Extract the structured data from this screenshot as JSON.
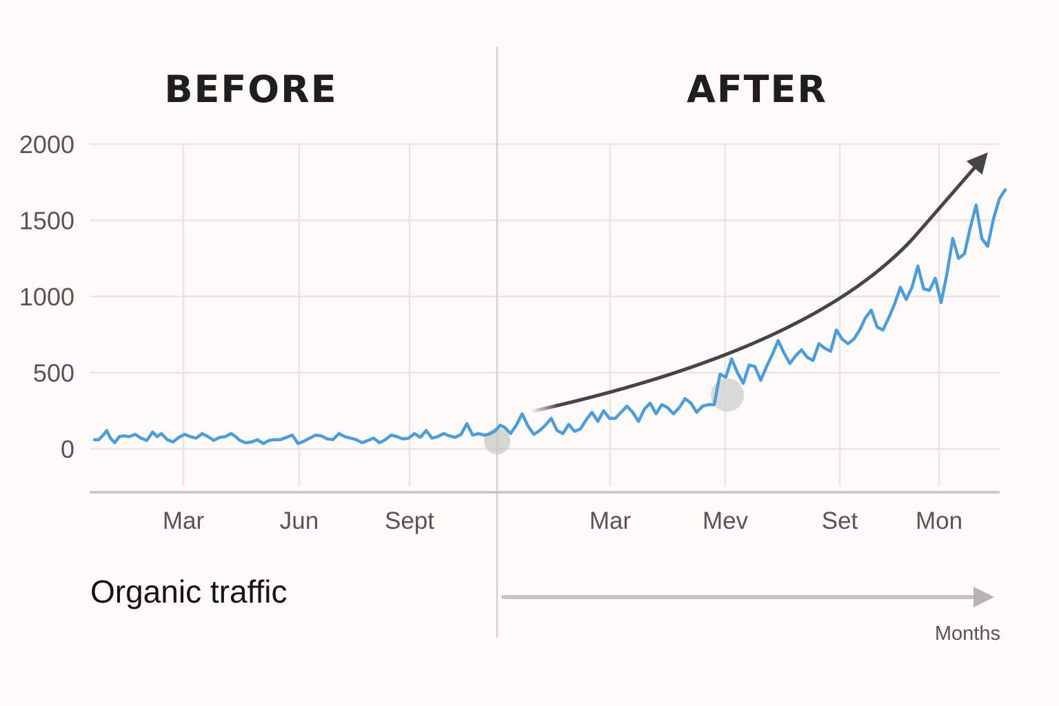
{
  "chart_data": {
    "type": "line",
    "panels": [
      {
        "title": "BEFORE",
        "x_ticks": [
          "Mar",
          "Jun",
          "Sept"
        ]
      },
      {
        "title": "AFTER",
        "x_ticks": [
          "Mar",
          "Mev",
          "Set",
          "Mon"
        ]
      }
    ],
    "y_ticks": [
      "2000",
      "1500",
      "1000",
      "500",
      "0"
    ],
    "ylim": [
      -280,
      2000
    ],
    "grid": true,
    "ylabel": "Organic traffic",
    "xlabel": "Months",
    "series": [
      {
        "color": "#4e9dd8",
        "points": [
          [
            0.0,
            60
          ],
          [
            0.15,
            60
          ],
          [
            0.3,
            90
          ],
          [
            0.42,
            120
          ],
          [
            0.55,
            70
          ],
          [
            0.7,
            40
          ],
          [
            0.85,
            80
          ],
          [
            1.0,
            85
          ],
          [
            1.2,
            80
          ],
          [
            1.4,
            95
          ],
          [
            1.6,
            70
          ],
          [
            1.8,
            55
          ],
          [
            2.0,
            110
          ],
          [
            2.15,
            80
          ],
          [
            2.3,
            100
          ],
          [
            2.5,
            60
          ],
          [
            2.7,
            45
          ],
          [
            2.9,
            75
          ],
          [
            3.1,
            95
          ],
          [
            3.3,
            80
          ],
          [
            3.5,
            70
          ],
          [
            3.7,
            100
          ],
          [
            3.9,
            80
          ],
          [
            4.1,
            55
          ],
          [
            4.3,
            75
          ],
          [
            4.5,
            80
          ],
          [
            4.7,
            100
          ],
          [
            4.85,
            80
          ],
          [
            5.0,
            55
          ],
          [
            5.2,
            40
          ],
          [
            5.4,
            45
          ],
          [
            5.6,
            60
          ],
          [
            5.8,
            35
          ],
          [
            6.0,
            55
          ],
          [
            6.2,
            60
          ],
          [
            6.4,
            60
          ],
          [
            6.6,
            75
          ],
          [
            6.8,
            90
          ],
          [
            7.0,
            35
          ],
          [
            7.2,
            50
          ],
          [
            7.4,
            70
          ],
          [
            7.6,
            90
          ],
          [
            7.8,
            85
          ],
          [
            8.0,
            65
          ],
          [
            8.2,
            60
          ],
          [
            8.4,
            100
          ],
          [
            8.6,
            80
          ],
          [
            8.8,
            70
          ],
          [
            9.0,
            60
          ],
          [
            9.2,
            40
          ],
          [
            9.4,
            55
          ],
          [
            9.6,
            70
          ],
          [
            9.8,
            40
          ],
          [
            10.0,
            60
          ],
          [
            10.2,
            90
          ],
          [
            10.4,
            80
          ],
          [
            10.6,
            65
          ],
          [
            10.8,
            70
          ],
          [
            11.0,
            100
          ],
          [
            11.2,
            75
          ],
          [
            11.4,
            120
          ],
          [
            11.6,
            70
          ],
          [
            11.8,
            80
          ],
          [
            12.0,
            100
          ],
          [
            12.2,
            85
          ],
          [
            12.4,
            75
          ],
          [
            12.6,
            95
          ],
          [
            12.8,
            165
          ],
          [
            13.0,
            90
          ],
          [
            13.2,
            100
          ],
          [
            13.4,
            90
          ],
          [
            13.55,
            95
          ],
          [
            13.75,
            115
          ],
          [
            13.95,
            155
          ],
          [
            14.1,
            140
          ],
          [
            14.3,
            100
          ],
          [
            14.5,
            155
          ],
          [
            14.7,
            230
          ],
          [
            14.9,
            150
          ],
          [
            15.1,
            95
          ],
          [
            15.3,
            120
          ],
          [
            15.5,
            155
          ],
          [
            15.7,
            200
          ],
          [
            15.9,
            120
          ],
          [
            16.1,
            100
          ],
          [
            16.3,
            160
          ],
          [
            16.5,
            115
          ],
          [
            16.7,
            130
          ],
          [
            16.9,
            190
          ],
          [
            17.1,
            240
          ],
          [
            17.3,
            180
          ],
          [
            17.5,
            250
          ],
          [
            17.7,
            200
          ],
          [
            17.9,
            200
          ],
          [
            18.1,
            240
          ],
          [
            18.3,
            280
          ],
          [
            18.5,
            240
          ],
          [
            18.7,
            180
          ],
          [
            18.9,
            260
          ],
          [
            19.1,
            300
          ],
          [
            19.3,
            230
          ],
          [
            19.5,
            290
          ],
          [
            19.7,
            270
          ],
          [
            19.9,
            230
          ],
          [
            20.1,
            270
          ],
          [
            20.3,
            330
          ],
          [
            20.5,
            300
          ],
          [
            20.7,
            240
          ],
          [
            20.9,
            280
          ],
          [
            21.1,
            290
          ],
          [
            21.3,
            290
          ],
          [
            21.5,
            490
          ],
          [
            21.7,
            470
          ],
          [
            21.9,
            590
          ],
          [
            22.1,
            500
          ],
          [
            22.3,
            430
          ],
          [
            22.5,
            550
          ],
          [
            22.7,
            540
          ],
          [
            22.9,
            450
          ],
          [
            23.1,
            540
          ],
          [
            23.3,
            620
          ],
          [
            23.5,
            710
          ],
          [
            23.7,
            630
          ],
          [
            23.9,
            560
          ],
          [
            24.1,
            610
          ],
          [
            24.3,
            650
          ],
          [
            24.5,
            600
          ],
          [
            24.7,
            580
          ],
          [
            24.9,
            690
          ],
          [
            25.1,
            660
          ],
          [
            25.3,
            640
          ],
          [
            25.5,
            780
          ],
          [
            25.7,
            720
          ],
          [
            25.9,
            690
          ],
          [
            26.1,
            720
          ],
          [
            26.3,
            780
          ],
          [
            26.5,
            860
          ],
          [
            26.7,
            910
          ],
          [
            26.9,
            800
          ],
          [
            27.1,
            780
          ],
          [
            27.3,
            860
          ],
          [
            27.5,
            950
          ],
          [
            27.7,
            1060
          ],
          [
            27.9,
            980
          ],
          [
            28.1,
            1060
          ],
          [
            28.3,
            1200
          ],
          [
            28.5,
            1050
          ],
          [
            28.7,
            1040
          ],
          [
            28.9,
            1120
          ],
          [
            29.1,
            960
          ],
          [
            29.3,
            1150
          ],
          [
            29.5,
            1380
          ],
          [
            29.7,
            1250
          ],
          [
            29.9,
            1280
          ],
          [
            30.1,
            1450
          ],
          [
            30.3,
            1600
          ],
          [
            30.5,
            1380
          ],
          [
            30.7,
            1330
          ],
          [
            30.9,
            1510
          ],
          [
            31.1,
            1640
          ],
          [
            31.3,
            1700
          ]
        ]
      }
    ]
  }
}
